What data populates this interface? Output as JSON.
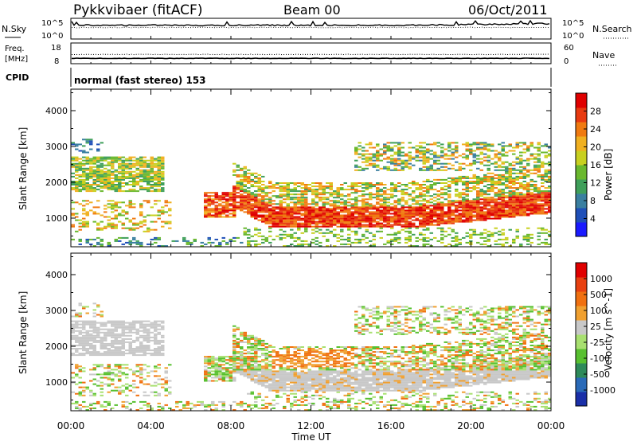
{
  "header": {
    "station": "Pykkvibaer (fitACF)",
    "beam": "Beam 00",
    "date": "06/Oct/2011"
  },
  "nsky_panel": {
    "left_label": "N.Sky",
    "right_label": "N.Search",
    "left_ticks": [
      "10^5",
      "10^0"
    ],
    "right_ticks": [
      "10^5",
      "10^0"
    ]
  },
  "freq_panel": {
    "left_label_line1": "Freq.",
    "left_label_line2": "[MHz]",
    "right_label": "Nave",
    "left_ticks": [
      "18",
      "8"
    ],
    "right_ticks": [
      "60",
      "0"
    ]
  },
  "cpid_panel": {
    "label": "CPID",
    "value": "normal (fast stereo) 153"
  },
  "chart_data": [
    {
      "type": "heatmap",
      "title": "",
      "xlabel": "Time UT",
      "ylabel": "Slant Range [km]",
      "x_tick_labels": [
        "00:00",
        "04:00",
        "08:00",
        "12:00",
        "16:00",
        "20:00",
        "00:00"
      ],
      "y_tick_labels": [
        "1000",
        "2000",
        "3000",
        "4000"
      ],
      "xlim_hours": [
        0,
        24
      ],
      "ylim": [
        200,
        4600
      ],
      "colorbar": {
        "label": "Power [dB]",
        "ticks": [
          "4",
          "8",
          "12",
          "16",
          "20",
          "24",
          "28"
        ],
        "colors": [
          "#1a1aff",
          "#1f4fb8",
          "#3a7fa0",
          "#3f9f5a",
          "#6ab82e",
          "#c8d020",
          "#f0b020",
          "#f07a10",
          "#e83a10",
          "#e00000"
        ]
      }
    },
    {
      "type": "heatmap",
      "title": "",
      "xlabel": "Time UT",
      "ylabel": "Slant Range [km]",
      "x_tick_labels": [
        "00:00",
        "04:00",
        "08:00",
        "12:00",
        "16:00",
        "20:00",
        "00:00"
      ],
      "y_tick_labels": [
        "1000",
        "2000",
        "3000",
        "4000"
      ],
      "xlim_hours": [
        0,
        24
      ],
      "ylim": [
        200,
        4600
      ],
      "colorbar": {
        "label": "Velocity [m s^-1]",
        "ticks": [
          "1000",
          "500",
          "100",
          "25",
          "-25",
          "-100",
          "-500",
          "-1000"
        ],
        "colors": [
          "#1a2fa8",
          "#2a6ab8",
          "#2e8a5a",
          "#58c030",
          "#a8e070",
          "#c8c8c8",
          "#f0a030",
          "#f07010",
          "#e84010",
          "#e00000"
        ]
      }
    }
  ]
}
